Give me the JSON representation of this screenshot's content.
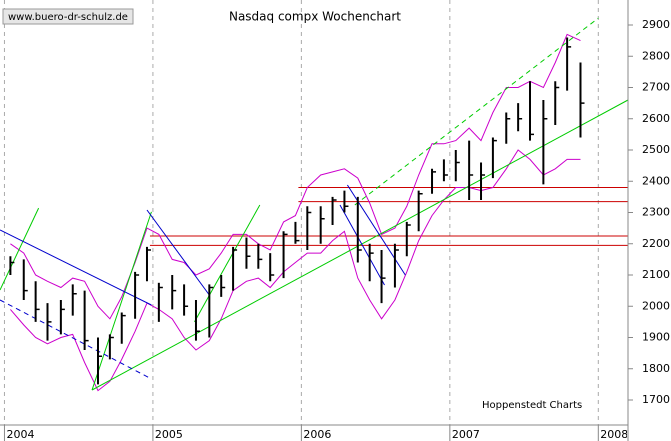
{
  "chart_data": {
    "type": "ohlc",
    "title": "Nasdaq compx Wochenchart",
    "watermark": "www.buero-dr-schulz.de",
    "source": "Hoppenstedt Charts",
    "xlim": [
      2003.97,
      2008.2
    ],
    "xticks": [
      2004,
      2005,
      2006,
      2007,
      2008
    ],
    "ylim": [
      1620,
      2980
    ],
    "yticks": [
      1700,
      1800,
      1900,
      2000,
      2100,
      2200,
      2300,
      2400,
      2500,
      2600,
      2700,
      2800,
      2900
    ],
    "grid": true,
    "color": "#000000",
    "x": [
      2004.04,
      2004.13,
      2004.21,
      2004.29,
      2004.38,
      2004.46,
      2004.54,
      2004.63,
      2004.71,
      2004.79,
      2004.88,
      2004.96,
      2005.04,
      2005.13,
      2005.21,
      2005.29,
      2005.38,
      2005.46,
      2005.54,
      2005.63,
      2005.71,
      2005.79,
      2005.88,
      2005.96,
      2006.04,
      2006.13,
      2006.21,
      2006.29,
      2006.38,
      2006.46,
      2006.54,
      2006.63,
      2006.71,
      2006.79,
      2006.88,
      2006.96,
      2007.04,
      2007.13,
      2007.21,
      2007.29,
      2007.38,
      2007.46,
      2007.54,
      2007.63,
      2007.71,
      2007.79,
      2007.88
    ],
    "high": [
      2160,
      2150,
      2080,
      2010,
      2020,
      2070,
      2050,
      1900,
      1910,
      1980,
      2110,
      2190,
      2075,
      2100,
      2070,
      2020,
      2070,
      2100,
      2190,
      2220,
      2200,
      2170,
      2240,
      2270,
      2320,
      2320,
      2350,
      2370,
      2350,
      2200,
      2180,
      2200,
      2270,
      2370,
      2440,
      2470,
      2500,
      2530,
      2460,
      2540,
      2620,
      2650,
      2720,
      2660,
      2720,
      2860,
      2780
    ],
    "low": [
      2100,
      2020,
      1950,
      1890,
      1910,
      1970,
      1860,
      1750,
      1830,
      1880,
      1960,
      2080,
      1950,
      1990,
      1970,
      1890,
      1900,
      2030,
      2050,
      2120,
      2120,
      2080,
      2090,
      2200,
      2180,
      2200,
      2260,
      2300,
      2140,
      2080,
      2010,
      2060,
      2160,
      2240,
      2360,
      2400,
      2400,
      2340,
      2340,
      2410,
      2520,
      2560,
      2530,
      2390,
      2580,
      2690,
      2540
    ],
    "close": [
      2140,
      2050,
      1990,
      1950,
      1990,
      2040,
      1890,
      1840,
      1900,
      1970,
      2100,
      2180,
      2060,
      2050,
      2000,
      1920,
      2060,
      2060,
      2180,
      2160,
      2150,
      2100,
      2230,
      2210,
      2300,
      2280,
      2340,
      2320,
      2180,
      2170,
      2090,
      2180,
      2260,
      2360,
      2430,
      2420,
      2460,
      2420,
      2420,
      2530,
      2600,
      2600,
      2550,
      2600,
      2700,
      2830,
      2650
    ],
    "band_color": "#cc00cc",
    "upper_band": [
      2200,
      2170,
      2100,
      2080,
      2060,
      2090,
      2080,
      2000,
      1960,
      2030,
      2140,
      2250,
      2230,
      2150,
      2140,
      2100,
      2120,
      2170,
      2230,
      2230,
      2200,
      2180,
      2270,
      2290,
      2380,
      2420,
      2430,
      2440,
      2410,
      2330,
      2230,
      2250,
      2320,
      2420,
      2520,
      2520,
      2530,
      2570,
      2530,
      2620,
      2700,
      2700,
      2720,
      2700,
      2780,
      2870,
      2850
    ],
    "lower_band": [
      1990,
      1940,
      1900,
      1880,
      1900,
      1910,
      1820,
      1730,
      1760,
      1830,
      1920,
      2010,
      1990,
      1960,
      1900,
      1860,
      1890,
      1960,
      2050,
      2080,
      2090,
      2060,
      2110,
      2140,
      2170,
      2170,
      2210,
      2240,
      2090,
      2020,
      1960,
      2020,
      2110,
      2210,
      2290,
      2340,
      2380,
      2380,
      2370,
      2380,
      2440,
      2500,
      2470,
      2420,
      2440,
      2470,
      2470
    ],
    "hline_color": "#cc0000",
    "hlines": [
      {
        "value": 2380,
        "start": 2005.98
      },
      {
        "value": 2335,
        "start": 2005.98
      },
      {
        "value": 2225,
        "start": 2004.98
      },
      {
        "value": 2195,
        "start": 2004.98
      }
    ],
    "trendlines": [
      {
        "x": [
          2004.59,
          2008.2
        ],
        "y": [
          1732,
          2660
        ],
        "color": "#00cc00",
        "dashed": false
      },
      {
        "x": [
          2006.36,
          2008.0
        ],
        "y": [
          2324,
          2922
        ],
        "color": "#00cc00",
        "dashed": true
      },
      {
        "x": [
          2003.97,
          2004.23
        ],
        "y": [
          2052,
          2314
        ],
        "color": "#00cc00",
        "dashed": false
      },
      {
        "x": [
          2004.59,
          2004.99
        ],
        "y": [
          1732,
          2302
        ],
        "color": "#00cc00",
        "dashed": false
      },
      {
        "x": [
          2005.28,
          2005.72
        ],
        "y": [
          1950,
          2324
        ],
        "color": "#00cc00",
        "dashed": false
      },
      {
        "x": [
          2003.97,
          2004.99
        ],
        "y": [
          2244,
          2004
        ],
        "color": "#0000cc",
        "dashed": false
      },
      {
        "x": [
          2003.97,
          2004.98
        ],
        "y": [
          2020,
          1770
        ],
        "color": "#0000cc",
        "dashed": true
      },
      {
        "x": [
          2004.96,
          2005.38
        ],
        "y": [
          2308,
          2036
        ],
        "color": "#0000cc",
        "dashed": false
      },
      {
        "x": [
          2006.31,
          2006.7
        ],
        "y": [
          2388,
          2100
        ],
        "color": "#0000cc",
        "dashed": false
      },
      {
        "x": [
          2006.26,
          2006.56
        ],
        "y": [
          2324,
          2068
        ],
        "color": "#0000cc",
        "dashed": false
      }
    ]
  }
}
